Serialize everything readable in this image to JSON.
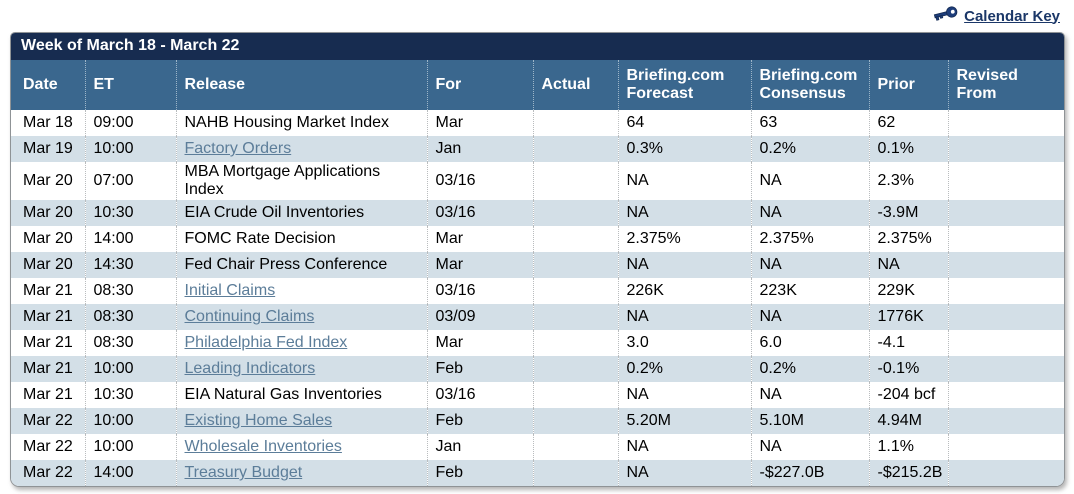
{
  "topbar": {
    "calendar_key_label": "Calendar Key"
  },
  "table": {
    "title": "Week of March 18 - March 22",
    "columns": [
      "Date",
      "ET",
      "Release",
      "For",
      "Actual",
      "Briefing.com Forecast",
      "Briefing.com Consensus",
      "Prior",
      "Revised From"
    ],
    "rows": [
      {
        "date": "Mar 18",
        "et": "09:00",
        "release": "NAHB Housing Market Index",
        "link": false,
        "for": "Mar",
        "actual": "",
        "forecast": "64",
        "consensus": "63",
        "prior": "62",
        "revised": ""
      },
      {
        "date": "Mar 19",
        "et": "10:00",
        "release": "Factory Orders",
        "link": true,
        "for": "Jan",
        "actual": "",
        "forecast": "0.3%",
        "consensus": "0.2%",
        "prior": "0.1%",
        "revised": ""
      },
      {
        "date": "Mar 20",
        "et": "07:00",
        "release": "MBA Mortgage Applications Index",
        "link": false,
        "for": "03/16",
        "actual": "",
        "forecast": "NA",
        "consensus": "NA",
        "prior": "2.3%",
        "revised": ""
      },
      {
        "date": "Mar 20",
        "et": "10:30",
        "release": "EIA Crude Oil Inventories",
        "link": false,
        "for": "03/16",
        "actual": "",
        "forecast": "NA",
        "consensus": "NA",
        "prior": "-3.9M",
        "revised": ""
      },
      {
        "date": "Mar 20",
        "et": "14:00",
        "release": "FOMC Rate Decision",
        "link": false,
        "for": "Mar",
        "actual": "",
        "forecast": "2.375%",
        "consensus": "2.375%",
        "prior": "2.375%",
        "revised": ""
      },
      {
        "date": "Mar 20",
        "et": "14:30",
        "release": "Fed Chair Press Conference",
        "link": false,
        "for": "Mar",
        "actual": "",
        "forecast": "NA",
        "consensus": "NA",
        "prior": "NA",
        "revised": ""
      },
      {
        "date": "Mar 21",
        "et": "08:30",
        "release": "Initial Claims",
        "link": true,
        "for": "03/16",
        "actual": "",
        "forecast": "226K",
        "consensus": "223K",
        "prior": "229K",
        "revised": ""
      },
      {
        "date": "Mar 21",
        "et": "08:30",
        "release": "Continuing Claims",
        "link": true,
        "for": "03/09",
        "actual": "",
        "forecast": "NA",
        "consensus": "NA",
        "prior": "1776K",
        "revised": ""
      },
      {
        "date": "Mar 21",
        "et": "08:30",
        "release": "Philadelphia Fed Index",
        "link": true,
        "for": "Mar",
        "actual": "",
        "forecast": "3.0",
        "consensus": "6.0",
        "prior": "-4.1",
        "revised": ""
      },
      {
        "date": "Mar 21",
        "et": "10:00",
        "release": "Leading Indicators",
        "link": true,
        "for": "Feb",
        "actual": "",
        "forecast": "0.2%",
        "consensus": "0.2%",
        "prior": "-0.1%",
        "revised": ""
      },
      {
        "date": "Mar 21",
        "et": "10:30",
        "release": "EIA Natural Gas Inventories",
        "link": false,
        "for": "03/16",
        "actual": "",
        "forecast": "NA",
        "consensus": "NA",
        "prior": "-204 bcf",
        "revised": ""
      },
      {
        "date": "Mar 22",
        "et": "10:00",
        "release": "Existing Home Sales",
        "link": true,
        "for": "Feb",
        "actual": "",
        "forecast": "5.20M",
        "consensus": "5.10M",
        "prior": "4.94M",
        "revised": ""
      },
      {
        "date": "Mar 22",
        "et": "10:00",
        "release": "Wholesale Inventories",
        "link": true,
        "for": "Jan",
        "actual": "",
        "forecast": "NA",
        "consensus": "NA",
        "prior": "1.1%",
        "revised": ""
      },
      {
        "date": "Mar 22",
        "et": "14:00",
        "release": "Treasury Budget",
        "link": true,
        "for": "Feb",
        "actual": "",
        "forecast": "NA",
        "consensus": "-$227.0B",
        "prior": "-$215.2B",
        "revised": ""
      }
    ]
  },
  "colors": {
    "title_bar": "#172c50",
    "header_row": "#3a678e",
    "alt_row": "#d3dfe7",
    "release_link": "#5c7d99",
    "calendar_key_link": "#1b3768"
  }
}
